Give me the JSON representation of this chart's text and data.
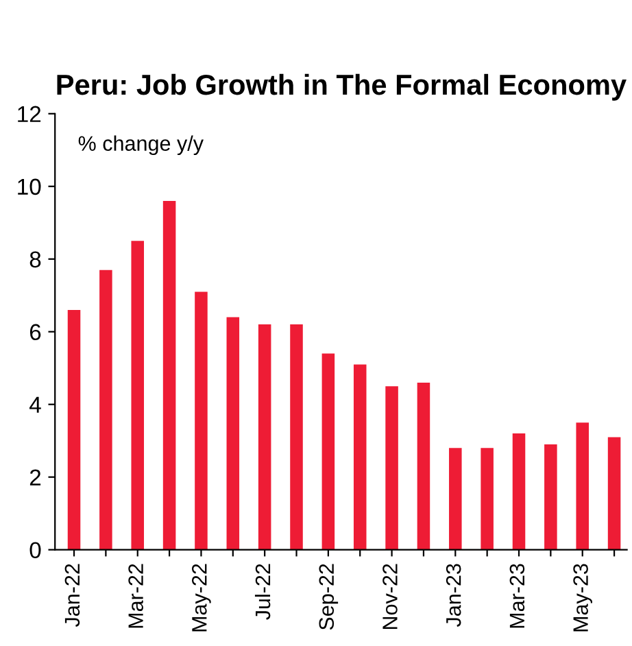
{
  "chart_data": {
    "type": "bar",
    "title": "Peru: Job Growth in The Formal Economy",
    "categories": [
      "Jan-22",
      null,
      "Mar-22",
      null,
      "May-22",
      null,
      "Jul-22",
      null,
      "Sep-22",
      null,
      "Nov-22",
      null,
      "Jan-23",
      null,
      "Mar-23",
      null,
      "May-23",
      null
    ],
    "values": [
      6.6,
      7.7,
      8.5,
      9.6,
      7.1,
      6.4,
      6.2,
      6.2,
      5.4,
      5.1,
      4.5,
      4.6,
      2.8,
      2.8,
      3.2,
      2.9,
      3.5,
      3.1
    ],
    "color": "#ee1c35",
    "ylim": [
      0,
      12
    ],
    "yticks": [
      0,
      2,
      4,
      6,
      8,
      10,
      12
    ],
    "annotations": [
      "% change y/y"
    ],
    "grid": false
  }
}
